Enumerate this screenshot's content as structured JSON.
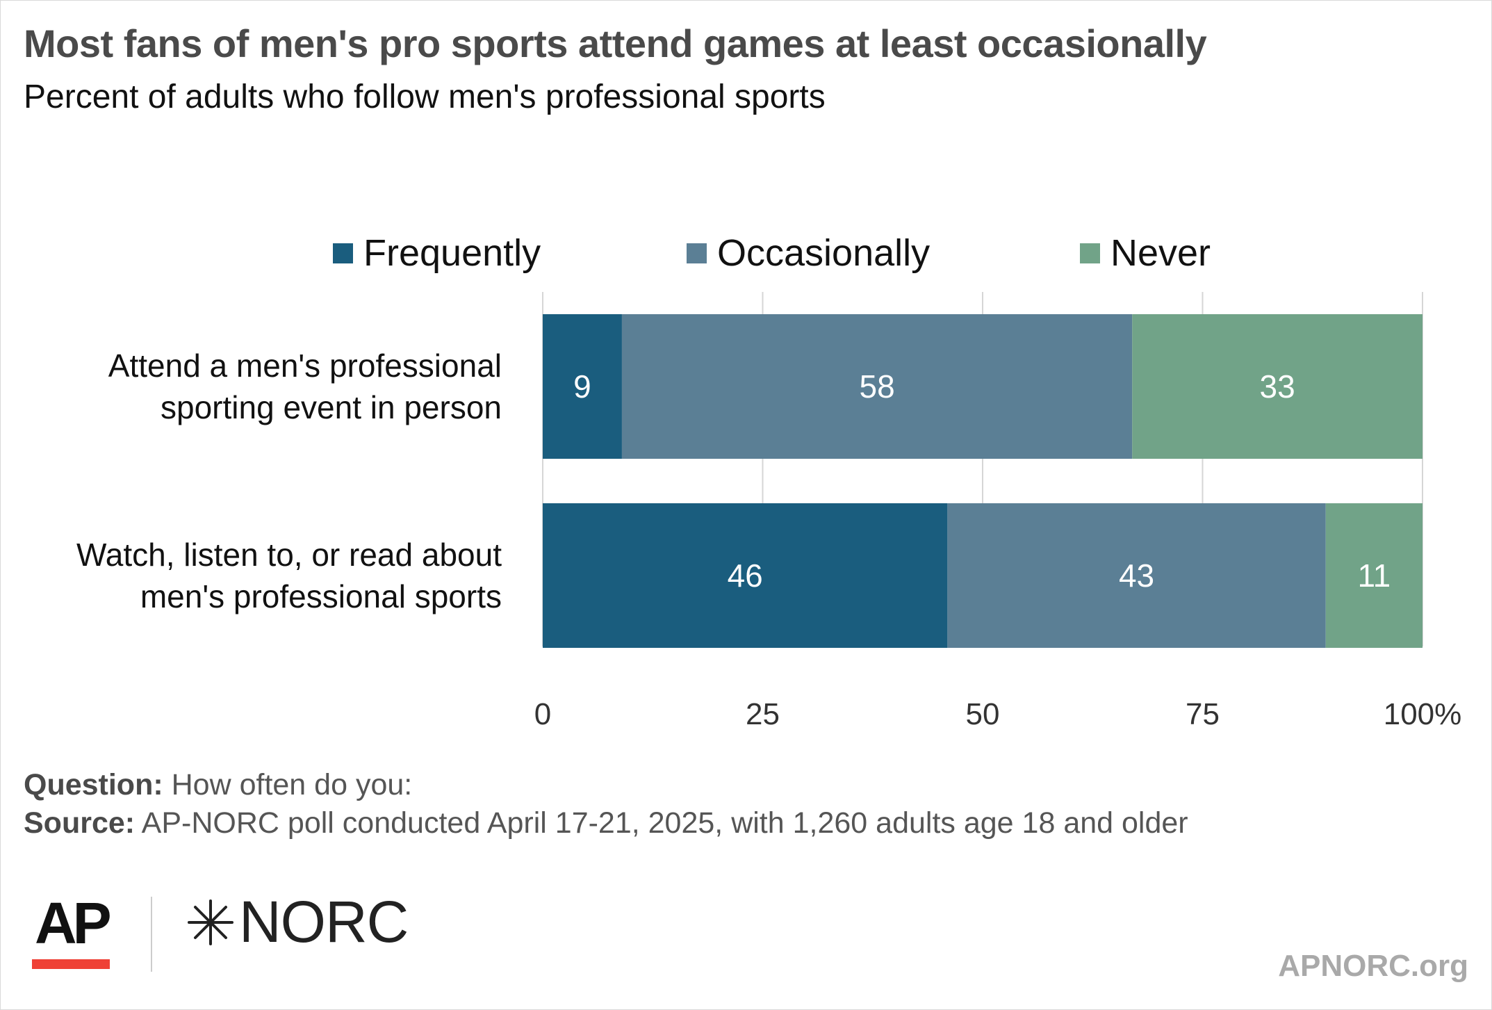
{
  "title": "Most fans of men's pro sports attend games at least occasionally",
  "subtitle": "Percent of adults who follow men's professional sports",
  "chart_data": {
    "type": "bar",
    "orientation": "horizontal",
    "stacked": true,
    "categories": [
      [
        "Attend a men's professional",
        "sporting event in person"
      ],
      [
        "Watch, listen to, or read about",
        "men's professional sports"
      ]
    ],
    "series": [
      {
        "name": "Frequently",
        "color": "#1a5d7e",
        "values": [
          9,
          46
        ]
      },
      {
        "name": "Occasionally",
        "color": "#5b7f95",
        "values": [
          58,
          43
        ]
      },
      {
        "name": "Never",
        "color": "#71a388",
        "values": [
          33,
          11
        ]
      }
    ],
    "xlim": [
      0,
      100
    ],
    "ticks": [
      0,
      25,
      50,
      75,
      100
    ],
    "tick_labels": [
      "0",
      "25",
      "50",
      "75",
      "100%"
    ],
    "grid": true,
    "legend_position": "top"
  },
  "footer": {
    "question_label": "Question:",
    "question_text": " How often do you:",
    "source_label": "Source:",
    "source_text": " AP-NORC poll conducted April 17-21, 2025, with 1,260 adults age 18 and older"
  },
  "logos": {
    "ap": "AP",
    "norc": "NORC",
    "site": "APNORC.org"
  }
}
